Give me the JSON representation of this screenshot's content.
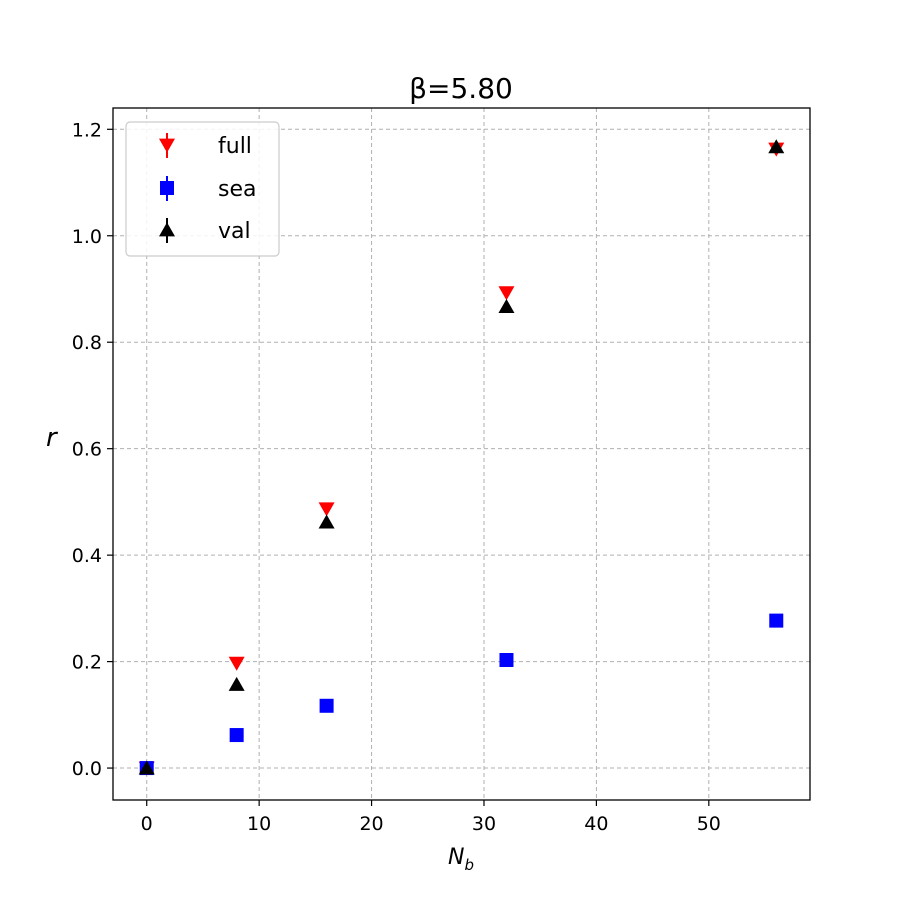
{
  "chart_data": {
    "type": "scatter",
    "title": "β=5.80",
    "xlabel": "N_b",
    "ylabel": "r",
    "xlim": [
      -3,
      59
    ],
    "ylim": [
      -0.06,
      1.24
    ],
    "xticks": [
      0,
      10,
      20,
      30,
      40,
      50
    ],
    "yticks": [
      0.0,
      0.2,
      0.4,
      0.6,
      0.8,
      1.0,
      1.2
    ],
    "xtick_labels": [
      "0",
      "10",
      "20",
      "30",
      "40",
      "50"
    ],
    "ytick_labels": [
      "0.0",
      "0.2",
      "0.4",
      "0.6",
      "0.8",
      "1.0",
      "1.2"
    ],
    "grid": true,
    "legend_position": "top-left",
    "series": [
      {
        "name": "full",
        "marker": "triangle-down",
        "color": "#ff0000",
        "x": [
          0,
          8,
          16,
          32,
          56
        ],
        "y": [
          0.0,
          0.197,
          0.487,
          0.893,
          1.163
        ]
      },
      {
        "name": "sea",
        "marker": "square",
        "color": "#0000ff",
        "x": [
          0,
          8,
          16,
          32,
          56
        ],
        "y": [
          0.0,
          0.062,
          0.117,
          0.203,
          0.277
        ]
      },
      {
        "name": "val",
        "marker": "triangle-up",
        "color": "#000000",
        "x": [
          0,
          8,
          16,
          32,
          56
        ],
        "y": [
          0.0,
          0.157,
          0.462,
          0.867,
          1.167
        ]
      }
    ]
  }
}
